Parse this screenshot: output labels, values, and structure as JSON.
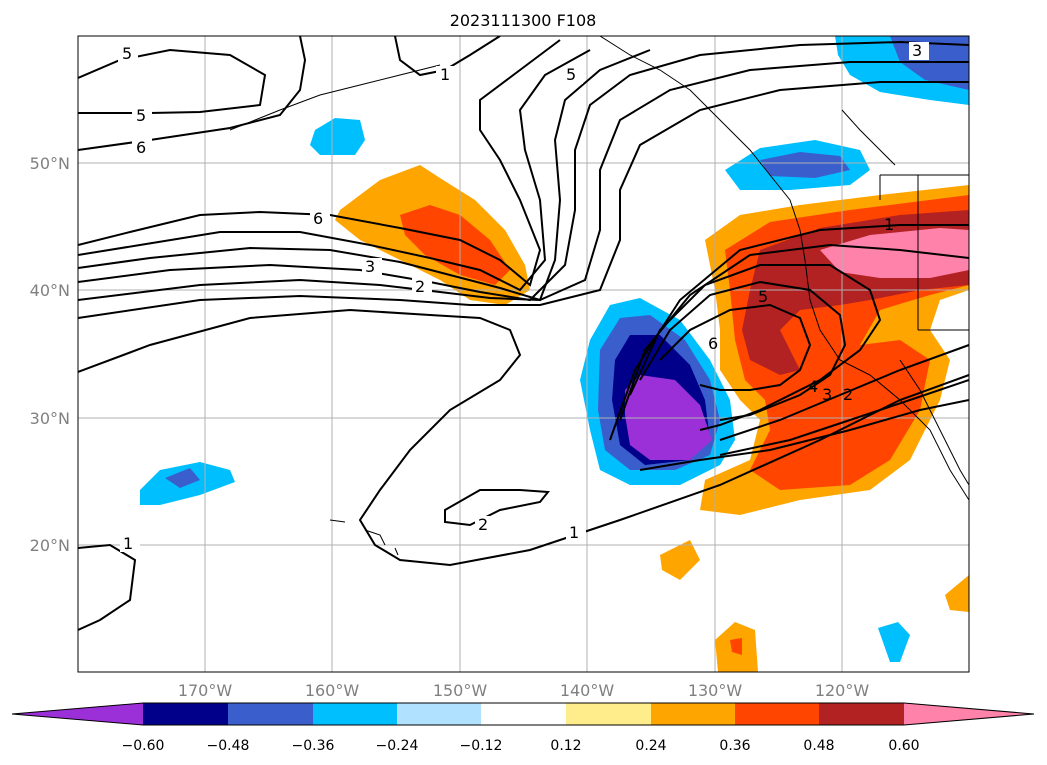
{
  "title": "2023111300 F108",
  "latitude_labels": [
    "50°N",
    "40°N",
    "30°N",
    "20°N"
  ],
  "longitude_labels": [
    "170°W",
    "160°W",
    "150°W",
    "140°W",
    "130°W",
    "120°W"
  ],
  "contour_labels": [
    "5",
    "5",
    "6",
    "1",
    "5",
    "3",
    "6",
    "3",
    "2",
    "1",
    "5",
    "6",
    "4",
    "3",
    "2",
    "2",
    "1",
    "1"
  ],
  "colorbar": {
    "colors": [
      "#9b30d9",
      "#00008b",
      "#3a5fcd",
      "#00bfff",
      "#b0e2ff",
      "#ffffff",
      "#ffec8b",
      "#ffa500",
      "#ff4500",
      "#b22222",
      "#ff82ab"
    ],
    "tick_labels": [
      "−0.60",
      "−0.48",
      "−0.36",
      "−0.24",
      "−0.12",
      "0.12",
      "0.24",
      "0.36",
      "0.48",
      "0.60"
    ]
  }
}
